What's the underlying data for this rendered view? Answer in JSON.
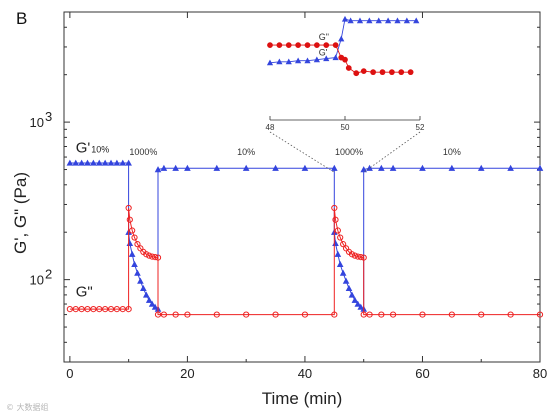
{
  "panel_label": "B",
  "watermark_text": "© 大数据组",
  "colors": {
    "g_prime": "#3344dd",
    "g_double_prime": "#ee2222",
    "axis": "#333333",
    "inset_marker": "#dd1111"
  },
  "chart_data": {
    "type": "line",
    "title": "",
    "xlabel": "Time (min)",
    "ylabel": "G', G\" (Pa)",
    "xlim": [
      -1,
      80
    ],
    "ylim": [
      30,
      5000
    ],
    "yscale": "log",
    "grid": false,
    "x_ticks": [
      0,
      20,
      40,
      60,
      80
    ],
    "y_ticks": [
      {
        "value": 100,
        "label": "10",
        "exp": "2"
      },
      {
        "value": 1000,
        "label": "10",
        "exp": "3"
      }
    ],
    "series": [
      {
        "name": "G'",
        "marker": "triangle",
        "segments": [
          {
            "x": [
              0,
              1,
              2,
              3,
              4,
              5,
              6,
              7,
              8,
              9,
              10
            ],
            "y": [
              550,
              550,
              550,
              550,
              550,
              550,
              550,
              550,
              550,
              550,
              550
            ]
          },
          {
            "x": [
              10,
              10.2,
              10.6,
              11,
              11.5,
              12,
              12.5,
              13,
              13.5,
              14,
              14.5,
              15
            ],
            "y": [
              200,
              170,
              145,
              125,
              110,
              98,
              88,
              80,
              74,
              70,
              67,
              65
            ]
          },
          {
            "x": [
              15,
              16,
              18,
              20,
              25,
              30,
              35,
              40,
              45
            ],
            "y": [
              500,
              510,
              510,
              510,
              510,
              510,
              510,
              510,
              510
            ]
          },
          {
            "x": [
              45,
              45.2,
              45.6,
              46,
              46.5,
              47,
              47.5,
              48,
              48.5,
              49,
              49.5,
              50
            ],
            "y": [
              200,
              170,
              145,
              125,
              110,
              98,
              88,
              80,
              74,
              70,
              67,
              65
            ]
          },
          {
            "x": [
              50,
              51,
              53,
              55,
              60,
              65,
              70,
              75,
              80
            ],
            "y": [
              500,
              510,
              510,
              510,
              510,
              510,
              510,
              510,
              510
            ]
          }
        ]
      },
      {
        "name": "G\"",
        "marker": "circle",
        "segments": [
          {
            "x": [
              0,
              1,
              2,
              3,
              4,
              5,
              6,
              7,
              8,
              9,
              10
            ],
            "y": [
              65,
              65,
              65,
              65,
              65,
              65,
              65,
              65,
              65,
              65,
              65
            ]
          },
          {
            "x": [
              10,
              10.2,
              10.6,
              11,
              11.5,
              12,
              12.5,
              13,
              13.5,
              14,
              14.5,
              15
            ],
            "y": [
              285,
              240,
              205,
              185,
              168,
              158,
              150,
              145,
              142,
              140,
              139,
              138
            ]
          },
          {
            "x": [
              15,
              16,
              18,
              20,
              25,
              30,
              35,
              40,
              45
            ],
            "y": [
              60,
              60,
              60,
              60,
              60,
              60,
              60,
              60,
              60
            ]
          },
          {
            "x": [
              45,
              45.2,
              45.6,
              46,
              46.5,
              47,
              47.5,
              48,
              48.5,
              49,
              49.5,
              50
            ],
            "y": [
              285,
              240,
              205,
              185,
              168,
              158,
              150,
              145,
              142,
              140,
              139,
              138
            ]
          },
          {
            "x": [
              50,
              51,
              53,
              55,
              60,
              65,
              70,
              75,
              80
            ],
            "y": [
              60,
              60,
              60,
              60,
              60,
              60,
              60,
              60,
              60
            ]
          }
        ]
      }
    ],
    "series_labels": [
      {
        "text": "G'",
        "sub": "10%",
        "x": 1,
        "y": 640
      },
      {
        "text": "G\"",
        "x": 1,
        "y": 78
      }
    ],
    "annotations": [
      {
        "text": "1000%",
        "x": 12.5,
        "y": 620
      },
      {
        "text": "10%",
        "x": 30,
        "y": 620
      },
      {
        "text": "1000%",
        "x": 47.5,
        "y": 620
      },
      {
        "text": "10%",
        "x": 65,
        "y": 620
      }
    ],
    "inset": {
      "xlim": [
        48,
        52
      ],
      "x_ticks": [
        48,
        50,
        52
      ],
      "series": [
        {
          "name": "G'",
          "marker": "triangle",
          "x": [
            48,
            48.25,
            48.5,
            48.75,
            49,
            49.25,
            49.5,
            49.75,
            49.9,
            50,
            50.15,
            50.4,
            50.65,
            50.9,
            51.15,
            51.4,
            51.65,
            51.9
          ],
          "y": [
            0.55,
            0.56,
            0.56,
            0.57,
            0.57,
            0.58,
            0.59,
            0.6,
            0.78,
            0.97,
            0.955,
            0.955,
            0.955,
            0.955,
            0.955,
            0.955,
            0.955,
            0.955
          ]
        },
        {
          "name": "G\"",
          "marker": "circle",
          "x": [
            48,
            48.25,
            48.5,
            48.75,
            49,
            49.25,
            49.5,
            49.75,
            49.9,
            50,
            50.1,
            50.3,
            50.5,
            50.75,
            51,
            51.25,
            51.5,
            51.75
          ],
          "y": [
            0.72,
            0.72,
            0.72,
            0.72,
            0.72,
            0.72,
            0.72,
            0.72,
            0.6,
            0.58,
            0.5,
            0.45,
            0.47,
            0.46,
            0.46,
            0.46,
            0.46,
            0.46
          ]
        }
      ],
      "labels": [
        {
          "text": "G\"",
          "x": 49.3,
          "y": 0.77
        },
        {
          "text": "G'",
          "x": 49.3,
          "y": 0.62
        }
      ]
    }
  }
}
